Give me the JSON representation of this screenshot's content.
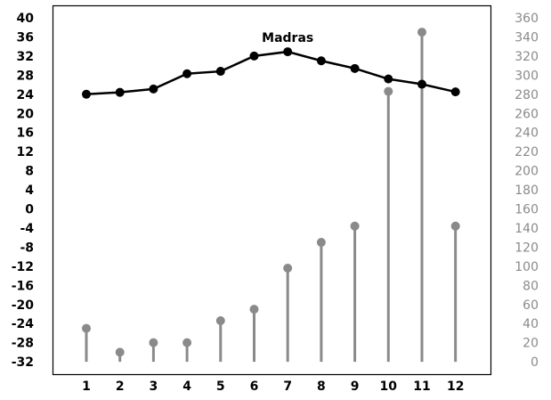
{
  "chart_data": {
    "type": "line",
    "title": "",
    "xlabel": "",
    "ylabel": "",
    "categories": [
      "1",
      "2",
      "3",
      "4",
      "5",
      "6",
      "7",
      "8",
      "9",
      "10",
      "11",
      "12"
    ],
    "series": [
      {
        "name": "Madras",
        "kind": "line",
        "axis": "left",
        "color": "#000000",
        "values": [
          24.0,
          24.4,
          25.1,
          28.3,
          28.8,
          32.0,
          32.9,
          31.0,
          29.4,
          27.2,
          26.1,
          24.5
        ]
      },
      {
        "kind": "stem",
        "axis": "right",
        "color": "#8a8a8a",
        "values": [
          35,
          10,
          20,
          20,
          43,
          55,
          98,
          125,
          142,
          283,
          345,
          142
        ]
      }
    ],
    "y_left": {
      "ylim": [
        -34,
        40
      ],
      "ticks": [
        "40",
        "36",
        "32",
        "28",
        "24",
        "20",
        "16",
        "12",
        "8",
        "4",
        "0",
        "-4",
        "-8",
        "-12",
        "-16",
        "-20",
        "-24",
        "-28",
        "-32"
      ]
    },
    "y_right": {
      "ylim": [
        0,
        360
      ],
      "ticks": [
        "360",
        "340",
        "320",
        "300",
        "280",
        "260",
        "240",
        "220",
        "200",
        "180",
        "160",
        "140",
        "120",
        "100",
        "80",
        "60",
        "40",
        "20",
        "0"
      ]
    },
    "grid": false,
    "legend": "none"
  }
}
